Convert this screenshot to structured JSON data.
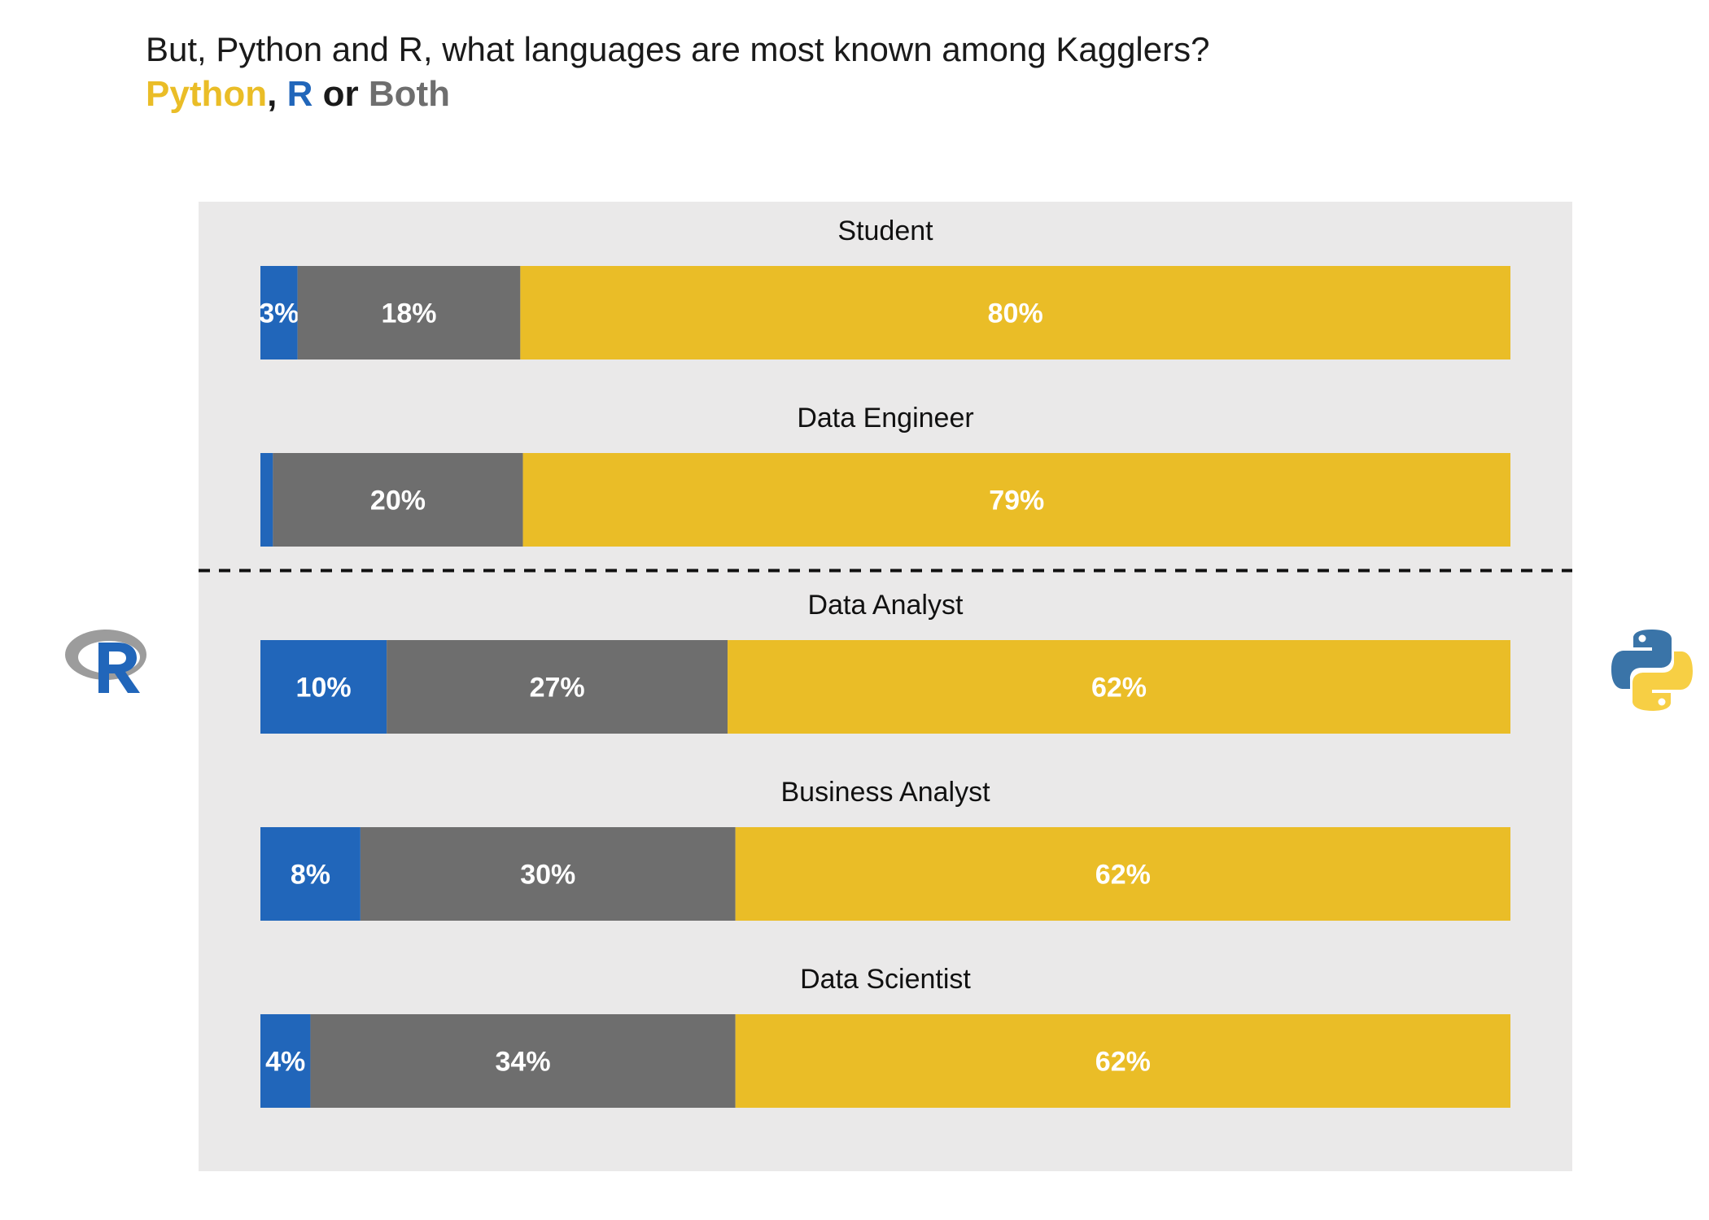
{
  "title": "But, Python and R, what languages are most known among Kagglers?",
  "subtitle": {
    "python": "Python",
    "comma": ",",
    "r": "R",
    "or": "or",
    "both": "Both"
  },
  "colors": {
    "python": "#EABD27",
    "r": "#2166BA",
    "both": "#6E6E6E",
    "panel_bg": "#EAE9E9",
    "divider": "#111111"
  },
  "icons": [
    "r-logo-icon",
    "python-logo-icon"
  ],
  "chart_data": {
    "type": "bar",
    "orientation": "horizontal",
    "stacked": true,
    "categories": [
      "Student",
      "Data Engineer",
      "Data Analyst",
      "Business Analyst",
      "Data Scientist"
    ],
    "series": [
      {
        "name": "R",
        "values": [
          3,
          1,
          10,
          8,
          4
        ],
        "labels": [
          "3%",
          "",
          "10%",
          "8%",
          "4%"
        ]
      },
      {
        "name": "Both",
        "values": [
          18,
          20,
          27,
          30,
          34
        ],
        "labels": [
          "18%",
          "20%",
          "27%",
          "30%",
          "34%"
        ]
      },
      {
        "name": "Python",
        "values": [
          80,
          79,
          62,
          62,
          62
        ],
        "labels": [
          "80%",
          "79%",
          "62%",
          "62%",
          "62%"
        ]
      }
    ],
    "xlim": [
      0,
      100
    ],
    "grid": false,
    "divider_after_category": "Data Engineer"
  }
}
